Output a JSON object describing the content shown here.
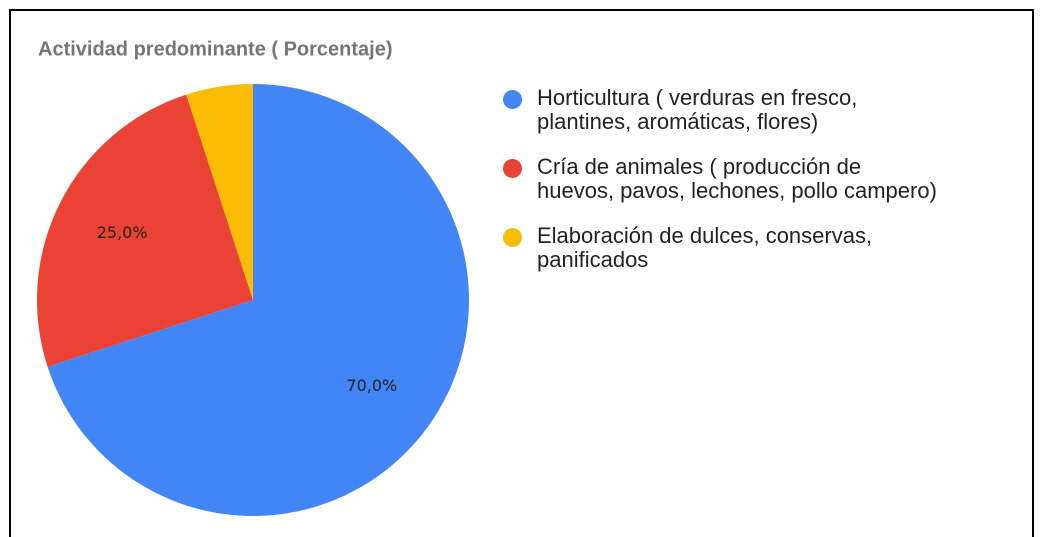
{
  "chart_data": {
    "type": "pie",
    "title": "Actividad predominante ( Porcentaje)",
    "categories": [
      "Horticultura ( verduras en fresco, plantines, aromáticas, flores)",
      "Cría de animales ( producción de huevos, pavos, lechones, pollo campero)",
      "Elaboración de dulces, conservas, panificados"
    ],
    "values": [
      70,
      25,
      5
    ],
    "value_labels": [
      "70,0%",
      "25,0%",
      null
    ],
    "colors": [
      "#4285f4",
      "#ea4335",
      "#fbbc04"
    ],
    "legend": "right"
  }
}
